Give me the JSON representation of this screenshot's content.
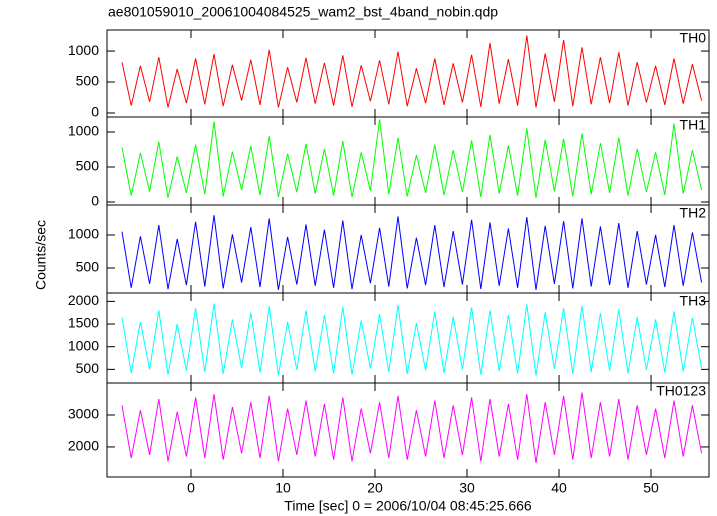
{
  "chart_data": {
    "type": "line",
    "title": "ae801059010_20061004084525_wam2_bst_4band_nobin.qdp",
    "xlabel": "Time [sec] 0 = 2006/10/04 08:45:25.666",
    "ylabel": "Counts/sec",
    "xlim": [
      -9.13,
      56.3
    ],
    "xticks": [
      0,
      10,
      20,
      30,
      40,
      50
    ],
    "x": [
      -7.5,
      -6.5,
      -5.5,
      -4.5,
      -3.5,
      -2.5,
      -1.5,
      -0.5,
      0.5,
      1.5,
      2.5,
      3.5,
      4.5,
      5.5,
      6.5,
      7.5,
      8.5,
      9.5,
      10.5,
      11.5,
      12.5,
      13.5,
      14.5,
      15.5,
      16.5,
      17.5,
      18.5,
      19.5,
      20.5,
      21.5,
      22.5,
      23.5,
      24.5,
      25.5,
      26.5,
      27.5,
      28.5,
      29.5,
      30.5,
      31.5,
      32.5,
      33.5,
      34.5,
      35.5,
      36.5,
      37.5,
      38.5,
      39.5,
      40.5,
      41.5,
      42.5,
      43.5,
      44.5,
      45.5,
      46.5,
      47.5,
      48.5,
      49.5,
      50.5,
      51.5,
      52.5,
      53.5,
      54.5,
      55.5
    ],
    "series": [
      {
        "name": "TH0",
        "color": "#ff0000",
        "ylim": [
          -65,
          1340
        ],
        "yticks": [
          0,
          500,
          1000
        ],
        "values": [
          820,
          120,
          760,
          180,
          900,
          90,
          710,
          160,
          880,
          140,
          950,
          110,
          780,
          200,
          860,
          130,
          1020,
          90,
          740,
          170,
          890,
          150,
          810,
          120,
          930,
          100,
          770,
          190,
          850,
          140,
          990,
          110,
          720,
          160,
          880,
          130,
          800,
          170,
          940,
          100,
          1130,
          150,
          870,
          120,
          1250,
          90,
          960,
          180,
          1180,
          110,
          1060,
          140,
          900,
          160,
          980,
          120,
          820,
          170,
          760,
          130,
          880,
          150,
          790,
          200
        ]
      },
      {
        "name": "TH1",
        "color": "#00ff00",
        "ylim": [
          -43,
          1214
        ],
        "yticks": [
          0,
          500,
          1000
        ],
        "values": [
          780,
          90,
          700,
          150,
          860,
          60,
          650,
          130,
          820,
          110,
          1150,
          80,
          720,
          170,
          800,
          100,
          940,
          70,
          690,
          140,
          830,
          120,
          760,
          90,
          870,
          70,
          710,
          160,
          1180,
          110,
          920,
          80,
          670,
          130,
          820,
          100,
          740,
          140,
          880,
          70,
          960,
          120,
          810,
          90,
          1050,
          60,
          890,
          150,
          900,
          80,
          980,
          110,
          840,
          130,
          920,
          90,
          760,
          140,
          710,
          100,
          1120,
          120,
          740,
          170
        ]
      },
      {
        "name": "TH2",
        "color": "#0000ff",
        "ylim": [
          121,
          1455
        ],
        "yticks": [
          500,
          1000
        ],
        "values": [
          1050,
          200,
          980,
          260,
          1150,
          180,
          940,
          240,
          1200,
          220,
          1300,
          190,
          1010,
          280,
          1120,
          210,
          1250,
          170,
          970,
          250,
          1160,
          230,
          1080,
          200,
          1220,
          180,
          1000,
          270,
          1110,
          220,
          1280,
          190,
          960,
          240,
          1150,
          210,
          1060,
          250,
          1230,
          180,
          1190,
          230,
          1100,
          200,
          1270,
          170,
          1140,
          260,
          1210,
          190,
          1250,
          220,
          1130,
          240,
          1180,
          200,
          1060,
          250,
          1000,
          210,
          1150,
          230,
          1040,
          280
        ]
      },
      {
        "name": "TH3",
        "color": "#00ffff",
        "ylim": [
          199,
          2185
        ],
        "yticks": [
          500,
          1000,
          1500,
          2000
        ],
        "values": [
          1650,
          420,
          1550,
          500,
          1800,
          380,
          1500,
          470,
          1850,
          440,
          1950,
          400,
          1600,
          530,
          1750,
          430,
          1900,
          370,
          1550,
          490,
          1800,
          450,
          1700,
          410,
          1880,
          380,
          1580,
          520,
          1720,
          440,
          1920,
          400,
          1520,
          480,
          1780,
          420,
          1660,
          500,
          1870,
          380,
          1800,
          460,
          1700,
          410,
          1930,
          360,
          1760,
          510,
          1850,
          400,
          1900,
          440,
          1740,
          470,
          1820,
          410,
          1650,
          490,
          1600,
          430,
          1780,
          450,
          1640,
          530
        ]
      },
      {
        "name": "TH0123",
        "color": "#ff00ff",
        "ylim": [
          1060,
          4000
        ],
        "yticks": [
          2000,
          3000
        ],
        "values": [
          3300,
          1650,
          3150,
          1750,
          3500,
          1550,
          3100,
          1700,
          3550,
          1650,
          3650,
          1600,
          3250,
          1800,
          3400,
          1650,
          3600,
          1550,
          3200,
          1750,
          3450,
          1700,
          3350,
          1600,
          3550,
          1550,
          3200,
          1800,
          3400,
          1650,
          3600,
          1600,
          3150,
          1700,
          3450,
          1650,
          3300,
          1750,
          3550,
          1550,
          3500,
          1700,
          3350,
          1600,
          3650,
          1500,
          3400,
          1750,
          3600,
          1600,
          3700,
          1650,
          3400,
          1700,
          3500,
          1600,
          3300,
          1750,
          3200,
          1650,
          3450,
          1700,
          3300,
          1800
        ]
      }
    ]
  }
}
